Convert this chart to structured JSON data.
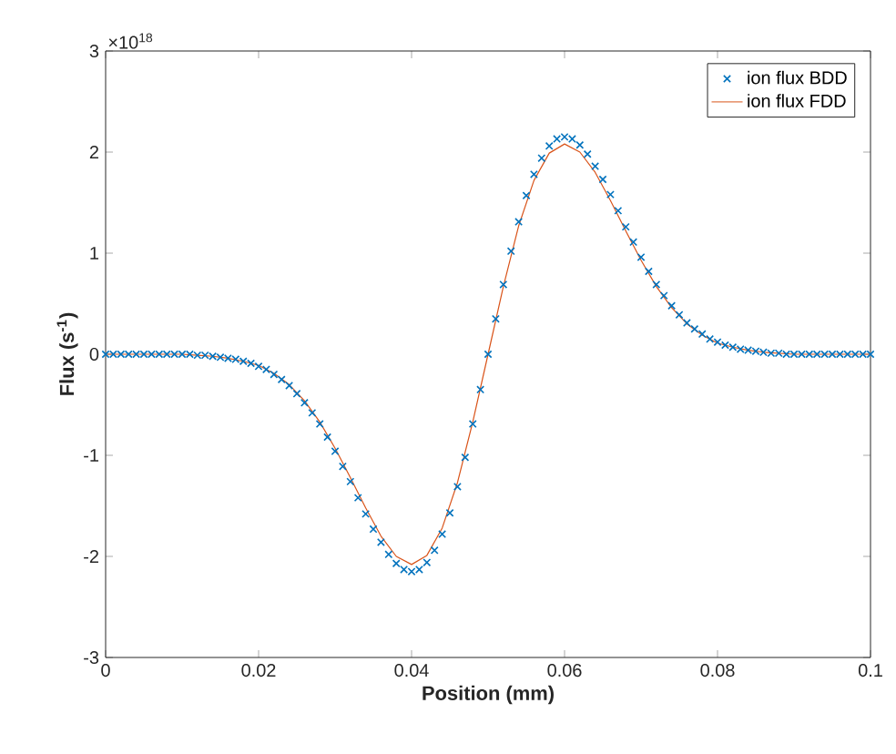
{
  "chart_data": {
    "type": "scatter",
    "xlabel": "Position (mm)",
    "ylabel": "Flux (s$^{-1}$)",
    "annotations": [
      "×10$^{18}$"
    ],
    "xlim": [
      0,
      0.1
    ],
    "ylim": [
      -3,
      3
    ],
    "xticks": [
      0,
      0.02,
      0.04,
      0.06,
      0.08,
      0.1
    ],
    "yticks": [
      -3,
      -2,
      -1,
      0,
      1,
      2,
      3
    ],
    "grid": false,
    "legend": "top right",
    "series": [
      {
        "name": "ion flux BDD",
        "marker": "cross",
        "color": "#0072bd",
        "x": [
          0,
          0.001,
          0.002,
          0.003,
          0.004,
          0.005,
          0.006,
          0.007,
          0.008,
          0.009,
          0.01,
          0.011,
          0.012,
          0.013,
          0.014,
          0.015,
          0.016,
          0.017,
          0.018,
          0.019,
          0.02,
          0.021,
          0.022,
          0.023,
          0.024,
          0.025,
          0.026,
          0.027,
          0.028,
          0.029,
          0.03,
          0.031,
          0.032,
          0.033,
          0.034,
          0.035,
          0.036,
          0.037,
          0.038,
          0.039,
          0.04,
          0.041,
          0.042,
          0.043,
          0.044,
          0.045,
          0.046,
          0.047,
          0.048,
          0.049,
          0.05,
          0.051,
          0.052,
          0.053,
          0.054,
          0.055,
          0.056,
          0.057,
          0.058,
          0.059,
          0.06,
          0.061,
          0.062,
          0.063,
          0.064,
          0.065,
          0.066,
          0.067,
          0.068,
          0.069,
          0.07,
          0.071,
          0.072,
          0.073,
          0.074,
          0.075,
          0.076,
          0.077,
          0.078,
          0.079,
          0.08,
          0.081,
          0.082,
          0.083,
          0.084,
          0.085,
          0.086,
          0.087,
          0.088,
          0.089,
          0.09,
          0.091,
          0.092,
          0.093,
          0.094,
          0.095,
          0.096,
          0.097,
          0.098,
          0.099,
          0.1
        ],
        "values": [
          0,
          0,
          0,
          0,
          0,
          0,
          0,
          0,
          0,
          0,
          0,
          0,
          -0.01,
          -0.01,
          -0.02,
          -0.03,
          -0.04,
          -0.05,
          -0.07,
          -0.09,
          -0.12,
          -0.15,
          -0.2,
          -0.25,
          -0.31,
          -0.39,
          -0.48,
          -0.58,
          -0.69,
          -0.82,
          -0.96,
          -1.11,
          -1.26,
          -1.42,
          -1.58,
          -1.73,
          -1.86,
          -1.98,
          -2.07,
          -2.13,
          -2.15,
          -2.13,
          -2.06,
          -1.94,
          -1.78,
          -1.57,
          -1.31,
          -1.02,
          -0.69,
          -0.35,
          0,
          0.35,
          0.69,
          1.02,
          1.31,
          1.57,
          1.78,
          1.94,
          2.06,
          2.13,
          2.15,
          2.13,
          2.07,
          1.98,
          1.86,
          1.73,
          1.58,
          1.42,
          1.26,
          1.11,
          0.96,
          0.82,
          0.69,
          0.58,
          0.48,
          0.39,
          0.31,
          0.25,
          0.2,
          0.15,
          0.12,
          0.09,
          0.07,
          0.05,
          0.04,
          0.03,
          0.02,
          0.01,
          0.01,
          0,
          0,
          0,
          0,
          0,
          0,
          0,
          0,
          0,
          0,
          0,
          0
        ]
      },
      {
        "name": "ion flux FDD",
        "type": "line",
        "marker": "none",
        "line_style": "solid",
        "color": "#d95319",
        "x": [
          0,
          0.002,
          0.004,
          0.006,
          0.008,
          0.01,
          0.012,
          0.014,
          0.016,
          0.018,
          0.02,
          0.022,
          0.024,
          0.026,
          0.028,
          0.03,
          0.032,
          0.034,
          0.036,
          0.038,
          0.04,
          0.042,
          0.044,
          0.046,
          0.048,
          0.05,
          0.052,
          0.054,
          0.056,
          0.058,
          0.06,
          0.062,
          0.064,
          0.066,
          0.068,
          0.07,
          0.072,
          0.074,
          0.076,
          0.078,
          0.08,
          0.082,
          0.084,
          0.086,
          0.088,
          0.09,
          0.092,
          0.094,
          0.096,
          0.098,
          0.1
        ],
        "values": [
          0,
          0,
          0,
          0,
          0,
          0,
          -0.01,
          -0.02,
          -0.04,
          -0.07,
          -0.11,
          -0.19,
          -0.3,
          -0.46,
          -0.67,
          -0.93,
          -1.22,
          -1.52,
          -1.8,
          -2.0,
          -2.08,
          -1.99,
          -1.72,
          -1.27,
          -0.67,
          0,
          0.67,
          1.27,
          1.72,
          1.99,
          2.08,
          2.0,
          1.8,
          1.52,
          1.22,
          0.93,
          0.67,
          0.46,
          0.3,
          0.19,
          0.11,
          0.07,
          0.04,
          0.02,
          0.01,
          0,
          0,
          0,
          0,
          0,
          0
        ]
      }
    ]
  }
}
